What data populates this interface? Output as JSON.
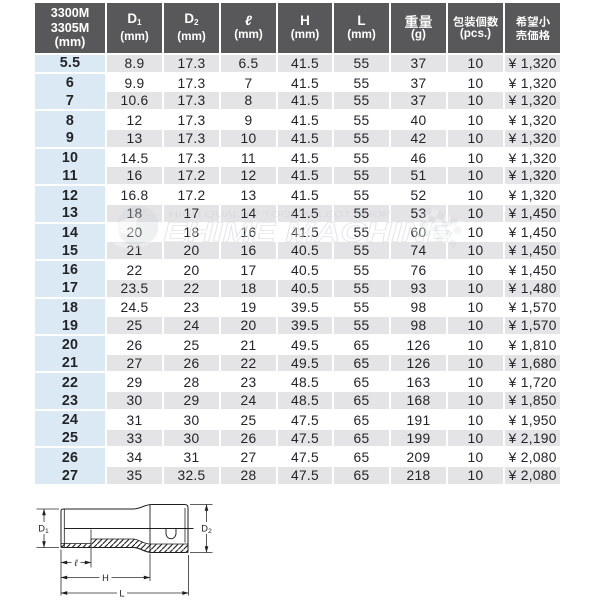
{
  "table": {
    "header": [
      {
        "lines": [
          "3300M",
          "3305M",
          "(mm)"
        ]
      },
      {
        "base": "D",
        "sub": "1",
        "unit": "(mm)"
      },
      {
        "base": "D",
        "sub": "2",
        "unit": "(mm)"
      },
      {
        "base": "ℓ",
        "unit": "(mm)"
      },
      {
        "base": "H",
        "unit": "(mm)"
      },
      {
        "base": "L",
        "unit": "(mm)"
      },
      {
        "base": "重量",
        "unit": "(g)"
      },
      {
        "base": "包装個数",
        "unit": "(pcs.)"
      },
      {
        "lines": [
          "希望小",
          "売価格"
        ]
      }
    ],
    "rows": [
      [
        "5.5",
        "8.9",
        "17.3",
        "6.5",
        "41.5",
        "55",
        "37",
        "10",
        "¥ 1,320"
      ],
      [
        "6",
        "9.9",
        "17.3",
        "7",
        "41.5",
        "55",
        "37",
        "10",
        "¥ 1,320"
      ],
      [
        "7",
        "10.6",
        "17.3",
        "8",
        "41.5",
        "55",
        "37",
        "10",
        "¥ 1,320"
      ],
      [
        "8",
        "12",
        "17.3",
        "9",
        "41.5",
        "55",
        "40",
        "10",
        "¥ 1,320"
      ],
      [
        "9",
        "13",
        "17.3",
        "10",
        "41.5",
        "55",
        "42",
        "10",
        "¥ 1,320"
      ],
      [
        "10",
        "14.5",
        "17.3",
        "11",
        "41.5",
        "55",
        "46",
        "10",
        "¥ 1,320"
      ],
      [
        "11",
        "16",
        "17.2",
        "12",
        "41.5",
        "55",
        "51",
        "10",
        "¥ 1,320"
      ],
      [
        "12",
        "16.8",
        "17.2",
        "13",
        "41.5",
        "55",
        "52",
        "10",
        "¥ 1,320"
      ],
      [
        "13",
        "18",
        "17",
        "14",
        "41.5",
        "55",
        "53",
        "10",
        "¥ 1,450"
      ],
      [
        "14",
        "20",
        "18",
        "16",
        "41.5",
        "55",
        "60",
        "10",
        "¥ 1,450"
      ],
      [
        "15",
        "21",
        "20",
        "16",
        "40.5",
        "55",
        "74",
        "10",
        "¥ 1,450"
      ],
      [
        "16",
        "22",
        "20",
        "17",
        "40.5",
        "55",
        "76",
        "10",
        "¥ 1,450"
      ],
      [
        "17",
        "23.5",
        "22",
        "18",
        "40.5",
        "55",
        "93",
        "10",
        "¥ 1,480"
      ],
      [
        "18",
        "24.5",
        "23",
        "19",
        "39.5",
        "55",
        "98",
        "10",
        "¥ 1,570"
      ],
      [
        "19",
        "25",
        "24",
        "20",
        "39.5",
        "55",
        "98",
        "10",
        "¥ 1,570"
      ],
      [
        "20",
        "26",
        "25",
        "21",
        "49.5",
        "65",
        "126",
        "10",
        "¥ 1,810"
      ],
      [
        "21",
        "27",
        "26",
        "22",
        "49.5",
        "65",
        "126",
        "10",
        "¥ 1,680"
      ],
      [
        "22",
        "29",
        "28",
        "23",
        "48.5",
        "65",
        "163",
        "10",
        "¥ 1,720"
      ],
      [
        "23",
        "30",
        "29",
        "24",
        "48.5",
        "65",
        "168",
        "10",
        "¥ 1,850"
      ],
      [
        "24",
        "31",
        "30",
        "25",
        "47.5",
        "65",
        "191",
        "10",
        "¥ 1,950"
      ],
      [
        "25",
        "33",
        "30",
        "26",
        "47.5",
        "65",
        "199",
        "10",
        "¥ 2,190"
      ],
      [
        "26",
        "34",
        "31",
        "27",
        "47.5",
        "65",
        "209",
        "10",
        "¥ 2,080"
      ],
      [
        "27",
        "35",
        "32.5",
        "28",
        "47.5",
        "65",
        "218",
        "10",
        "¥ 2,080"
      ]
    ]
  },
  "watermark": {
    "tagline": "HIGH QUALITY TOOL SELECT SHOP",
    "name": "EHIME MACHINE"
  },
  "diagram": {
    "d1_base": "D",
    "d1_sub": "1",
    "d2_base": "D",
    "d2_sub": "2",
    "l_label": "ℓ",
    "h_label": "H",
    "len_label": "L"
  },
  "colors": {
    "header_bg": "#58585b",
    "stripe_bg": "#e4e4e6",
    "size_col_bg": "#dbe9f4",
    "text": "#232427"
  }
}
